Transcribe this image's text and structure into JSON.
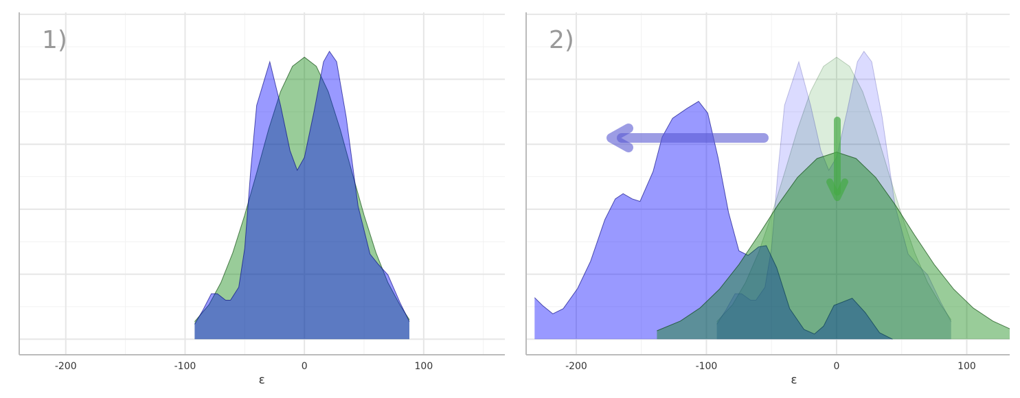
{
  "chart_data": [
    {
      "type": "area",
      "title": "1)",
      "xlabel": "ε",
      "xlim": [
        -239,
        168
      ],
      "ylim": [
        -0.24,
        5.03
      ],
      "xticks": [
        -200,
        -100,
        0,
        100
      ],
      "xticks_minor": [
        -150,
        -50,
        50,
        150
      ],
      "yticks": [
        0,
        1,
        2,
        3,
        4,
        5
      ],
      "yticks_minor": [
        0.5,
        1.5,
        2.5,
        3.5,
        4.5
      ],
      "grid": true,
      "series": [
        {
          "color": "#008000",
          "opacity": 0.4,
          "x": [
            -92,
            -80,
            -70,
            -60,
            -50,
            -40,
            -30,
            -20,
            -10,
            0,
            10,
            20,
            30,
            40,
            50,
            60,
            70,
            80,
            88
          ],
          "values": [
            0.27,
            0.53,
            0.87,
            1.33,
            1.91,
            2.56,
            3.23,
            3.81,
            4.2,
            4.34,
            4.2,
            3.81,
            3.23,
            2.56,
            1.91,
            1.33,
            0.87,
            0.53,
            0.3
          ]
        },
        {
          "color": "#0000ff",
          "opacity": 0.4,
          "x": [
            -92,
            -85,
            -78,
            -73,
            -66,
            -62,
            -55,
            -50,
            -45,
            -40,
            -29,
            -20,
            -12,
            -6,
            0,
            8,
            16,
            21,
            27,
            35,
            45,
            55,
            62,
            70,
            80,
            88
          ],
          "values": [
            0.23,
            0.45,
            0.7,
            0.7,
            0.6,
            0.6,
            0.8,
            1.4,
            2.6,
            3.6,
            4.27,
            3.6,
            2.9,
            2.6,
            2.8,
            3.5,
            4.27,
            4.43,
            4.27,
            3.42,
            2.05,
            1.31,
            1.15,
            0.99,
            0.57,
            0.27
          ]
        }
      ]
    },
    {
      "type": "area",
      "title": "2)",
      "xlabel": "ε",
      "xlim": [
        -238.5,
        133
      ],
      "ylim": [
        -0.24,
        5.03
      ],
      "xticks": [
        -200,
        -100,
        0,
        100
      ],
      "xticks_minor": [
        -150,
        -50,
        50
      ],
      "yticks": [
        0,
        1,
        2,
        3,
        4,
        5
      ],
      "yticks_minor": [
        0.5,
        1.5,
        2.5,
        3.5,
        4.5
      ],
      "grid": true,
      "series": [
        {
          "color": "#008000",
          "opacity": 0.14,
          "x": [
            -92,
            -80,
            -70,
            -60,
            -50,
            -40,
            -30,
            -20,
            -10,
            0,
            10,
            20,
            30,
            40,
            50,
            60,
            70,
            80,
            88
          ],
          "values": [
            0.27,
            0.53,
            0.87,
            1.33,
            1.91,
            2.56,
            3.23,
            3.81,
            4.2,
            4.34,
            4.2,
            3.81,
            3.23,
            2.56,
            1.91,
            1.33,
            0.87,
            0.53,
            0.3
          ]
        },
        {
          "color": "#0000ff",
          "opacity": 0.14,
          "x": [
            -92,
            -85,
            -78,
            -73,
            -66,
            -62,
            -55,
            -50,
            -45,
            -40,
            -29,
            -20,
            -12,
            -6,
            0,
            8,
            16,
            21,
            27,
            35,
            45,
            55,
            62,
            70,
            80,
            88
          ],
          "values": [
            0.23,
            0.45,
            0.7,
            0.7,
            0.6,
            0.6,
            0.8,
            1.4,
            2.6,
            3.6,
            4.27,
            3.6,
            2.9,
            2.6,
            2.8,
            3.5,
            4.27,
            4.43,
            4.27,
            3.42,
            2.05,
            1.31,
            1.15,
            0.99,
            0.57,
            0.27
          ]
        },
        {
          "color": "#0000ff",
          "opacity": 0.4,
          "x": [
            -232,
            -226,
            -218,
            -210,
            -199,
            -189,
            -178,
            -170,
            -164,
            -157,
            -151,
            -141,
            -134,
            -126,
            -115,
            -106,
            -99,
            -91,
            -83,
            -75,
            -68,
            -60,
            -54,
            -46,
            -36,
            -25,
            -17,
            -10,
            -2,
            12,
            22,
            33,
            43
          ],
          "values": [
            0.64,
            0.52,
            0.39,
            0.47,
            0.78,
            1.2,
            1.84,
            2.16,
            2.24,
            2.16,
            2.12,
            2.58,
            3.11,
            3.4,
            3.55,
            3.66,
            3.48,
            2.79,
            1.95,
            1.36,
            1.29,
            1.42,
            1.44,
            1.1,
            0.47,
            0.15,
            0.08,
            0.2,
            0.52,
            0.63,
            0.41,
            0.1,
            0
          ]
        },
        {
          "color": "#008000",
          "opacity": 0.4,
          "x": [
            -138,
            -120,
            -105,
            -90,
            -75,
            -60,
            -45,
            -30,
            -15,
            0,
            15,
            30,
            45,
            60,
            75,
            90,
            105,
            120,
            133
          ],
          "values": [
            0.13,
            0.28,
            0.48,
            0.77,
            1.15,
            1.6,
            2.07,
            2.49,
            2.78,
            2.88,
            2.78,
            2.49,
            2.07,
            1.6,
            1.15,
            0.77,
            0.48,
            0.28,
            0.16
          ]
        }
      ]
    }
  ]
}
